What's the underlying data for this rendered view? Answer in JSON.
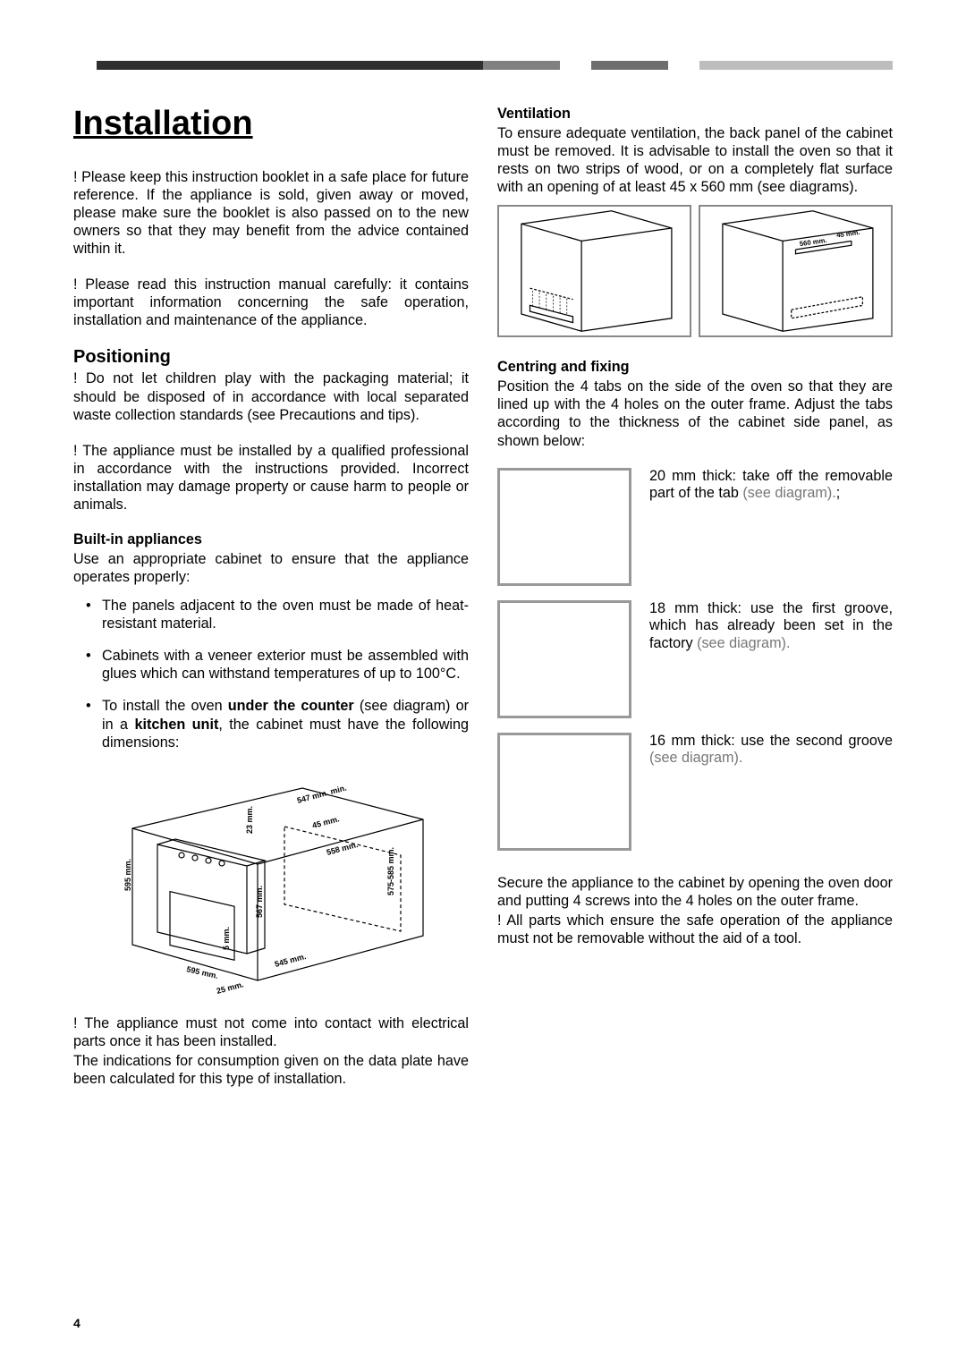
{
  "hr_bar": {
    "segments": [
      {
        "color": "#2f2f2f",
        "flex": 50
      },
      {
        "color": "#808080",
        "flex": 10
      },
      {
        "color": "#ffffff",
        "flex": 4
      },
      {
        "color": "#6e6e6e",
        "flex": 10
      },
      {
        "color": "#ffffff",
        "flex": 4
      },
      {
        "color": "#bdbdbd",
        "flex": 25
      }
    ]
  },
  "title": "Installation",
  "left": {
    "p1": "! Please keep this instruction booklet in a safe place for future reference. If the appliance is sold, given away or moved, please make sure the booklet is also passed on to the new owners so that they may benefit from the advice contained within it.",
    "p2": "! Please read this instruction manual carefully: it contains important information concerning the safe operation, installation and maintenance of the appliance.",
    "h2": "Positioning",
    "p3": "! Do not let children play with the packaging material; it should be disposed of in accordance with local separated waste collection standards (see Precautions and tips).",
    "p4": "! The appliance must be installed by a qualified professional in accordance with the instructions provided. Incorrect installation may damage property or cause harm to people or animals.",
    "h3": "Built-in appliances",
    "p5": "Use an appropriate cabinet to ensure that the appliance operates properly:",
    "li1": "The panels adjacent to the oven must be made of heat-resistant material.",
    "li2": "Cabinets with a veneer exterior must be assembled with glues which can withstand temperatures of up to 100°C.",
    "li3_a": "To install the oven ",
    "li3_b": "under the counter",
    "li3_c": " (see diagram) or in a ",
    "li3_d": "kitchen unit",
    "li3_e": ", the cabinet must have the following dimensions:",
    "cabinet_diagram": {
      "border_color": "#999999",
      "bg_color": "#f8f8f8",
      "line_color": "#000000",
      "dims": [
        "595 mm.",
        "595 mm.",
        "567 mm.",
        "23 mm.",
        "5 mm.",
        "545 mm.",
        "25 mm.",
        "45 mm.",
        "558 mm.",
        "575-585 mm.",
        "547 mm. min."
      ]
    },
    "p6": "! The appliance must not come into contact with electrical parts once it has been installed.",
    "p7": "The indications for consumption given on the data plate have been calculated for this type of installation."
  },
  "right": {
    "h3a": "Ventilation",
    "p1": "To ensure adequate ventilation, the back panel of the cabinet must be removed. It is advisable to install the oven so that it rests on two strips of wood, or on a completely flat surface with an opening of at least 45 x 560 mm (see diagrams).",
    "vent_diagram": {
      "label_a": "560 mm.",
      "label_b": "45 mm.",
      "border_color": "#888888",
      "line_color": "#000000"
    },
    "h3b": "Centring and fixing",
    "p2": "Position the 4 tabs on the side of the oven so that they are lined up with the 4 holes on the outer frame. Adjust the tabs according to the thickness of the cabinet side panel, as shown below:",
    "tab1_a": "20 mm thick: take off the removable part of the tab ",
    "tab1_b": "(see diagram).",
    "tab1_c": ";",
    "tab2_a": "18 mm thick: use the first groove, which has already been set in the factory ",
    "tab2_b": "(see diagram).",
    "tab3_a": "16 mm thick: use the second groove ",
    "tab3_b": "(see diagram).",
    "tab_box": {
      "border_color": "#999999"
    },
    "p3": "Secure the appliance to the cabinet by opening the oven door and putting 4 screws into the 4 holes on the outer frame.",
    "p4": "! All parts which ensure the safe operation of the appliance must not be removable without the aid of a tool."
  },
  "page_number": "4"
}
